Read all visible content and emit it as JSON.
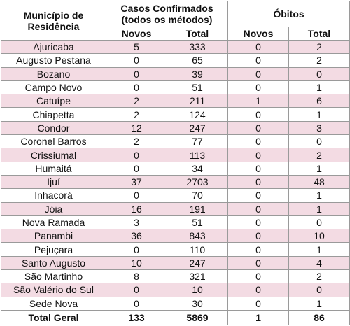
{
  "header": {
    "municipio": "Município de Residência",
    "casos": "Casos Confirmados (todos os métodos)",
    "obitos": "Óbitos",
    "novos": "Novos",
    "total": "Total"
  },
  "rows": [
    {
      "m": "Ajuricaba",
      "cn": "5",
      "ct": "333",
      "on": "0",
      "ot": "2"
    },
    {
      "m": "Augusto Pestana",
      "cn": "0",
      "ct": "65",
      "on": "0",
      "ot": "2"
    },
    {
      "m": "Bozano",
      "cn": "0",
      "ct": "39",
      "on": "0",
      "ot": "0"
    },
    {
      "m": "Campo Novo",
      "cn": "0",
      "ct": "51",
      "on": "0",
      "ot": "1"
    },
    {
      "m": "Catuípe",
      "cn": "2",
      "ct": "211",
      "on": "1",
      "ot": "6"
    },
    {
      "m": "Chiapetta",
      "cn": "2",
      "ct": "124",
      "on": "0",
      "ot": "1"
    },
    {
      "m": "Condor",
      "cn": "12",
      "ct": "247",
      "on": "0",
      "ot": "3"
    },
    {
      "m": "Coronel Barros",
      "cn": "2",
      "ct": "77",
      "on": "0",
      "ot": "0"
    },
    {
      "m": "Crissiumal",
      "cn": "0",
      "ct": "113",
      "on": "0",
      "ot": "2"
    },
    {
      "m": "Humaitá",
      "cn": "0",
      "ct": "34",
      "on": "0",
      "ot": "1"
    },
    {
      "m": "Ijuí",
      "cn": "37",
      "ct": "2703",
      "on": "0",
      "ot": "48"
    },
    {
      "m": "Inhacorá",
      "cn": "0",
      "ct": "70",
      "on": "0",
      "ot": "1"
    },
    {
      "m": "Jóia",
      "cn": "16",
      "ct": "191",
      "on": "0",
      "ot": "1"
    },
    {
      "m": "Nova Ramada",
      "cn": "3",
      "ct": "51",
      "on": "0",
      "ot": "0"
    },
    {
      "m": "Panambi",
      "cn": "36",
      "ct": "843",
      "on": "0",
      "ot": "10"
    },
    {
      "m": "Pejuçara",
      "cn": "0",
      "ct": "110",
      "on": "0",
      "ot": "1"
    },
    {
      "m": "Santo Augusto",
      "cn": "10",
      "ct": "247",
      "on": "0",
      "ot": "4"
    },
    {
      "m": "São Martinho",
      "cn": "8",
      "ct": "321",
      "on": "0",
      "ot": "2"
    },
    {
      "m": "São Valério do Sul",
      "cn": "0",
      "ct": "10",
      "on": "0",
      "ot": "0"
    },
    {
      "m": "Sede Nova",
      "cn": "0",
      "ct": "30",
      "on": "0",
      "ot": "1"
    }
  ],
  "footer": {
    "m": "Total Geral",
    "cn": "133",
    "ct": "5869",
    "on": "1",
    "ot": "86"
  },
  "colors": {
    "stripe": "#f3dbe3",
    "border": "#9a9a9a"
  }
}
